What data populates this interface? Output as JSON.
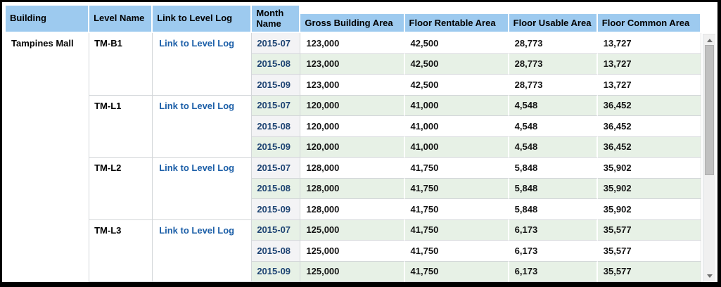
{
  "table": {
    "headers": [
      "Building",
      "Level Name",
      "Link to Level Log",
      "Month Name",
      "Gross Building Area",
      "Floor Rentable Area",
      "Floor Usable Area",
      "Floor Common Area"
    ],
    "building_name": "Tampines Mall",
    "link_label": "Link to Level Log",
    "groups": [
      {
        "level_name": "TM-B1",
        "rows": [
          [
            "2015-07",
            "123,000",
            "42,500",
            "28,773",
            "13,727"
          ],
          [
            "2015-08",
            "123,000",
            "42,500",
            "28,773",
            "13,727"
          ],
          [
            "2015-09",
            "123,000",
            "42,500",
            "28,773",
            "13,727"
          ]
        ]
      },
      {
        "level_name": "TM-L1",
        "rows": [
          [
            "2015-07",
            "120,000",
            "41,000",
            "4,548",
            "36,452"
          ],
          [
            "2015-08",
            "120,000",
            "41,000",
            "4,548",
            "36,452"
          ],
          [
            "2015-09",
            "120,000",
            "41,000",
            "4,548",
            "36,452"
          ]
        ]
      },
      {
        "level_name": "TM-L2",
        "rows": [
          [
            "2015-07",
            "128,000",
            "41,750",
            "5,848",
            "35,902"
          ],
          [
            "2015-08",
            "128,000",
            "41,750",
            "5,848",
            "35,902"
          ],
          [
            "2015-09",
            "128,000",
            "41,750",
            "5,848",
            "35,902"
          ]
        ]
      },
      {
        "level_name": "TM-L3",
        "rows": [
          [
            "2015-07",
            "125,000",
            "41,750",
            "6,173",
            "35,577"
          ],
          [
            "2015-08",
            "125,000",
            "41,750",
            "6,173",
            "35,577"
          ],
          [
            "2015-09",
            "125,000",
            "41,750",
            "6,173",
            "35,577"
          ]
        ]
      }
    ]
  },
  "scrollbar": {
    "up_icon": "triangle-up",
    "down_icon": "triangle-down"
  },
  "colors": {
    "header_bg": "#9DCAEF",
    "row_green": "#E7F1E6",
    "month_bg": "#F3F3F5",
    "grid_line": "#D3D6D9",
    "link_color": "#1C5FA8",
    "month_text": "#1E4473",
    "value_text": "#141414",
    "scroll_track": "#F0F0F0",
    "scroll_thumb": "#C0C0C0"
  }
}
